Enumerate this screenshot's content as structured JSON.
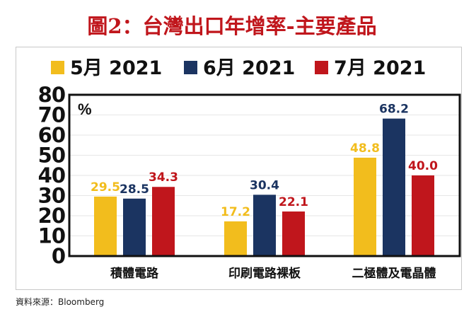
{
  "title": "圖2：台灣出口年增率-主要產品",
  "source": "資料來源：Bloomberg",
  "chart_data": {
    "type": "bar",
    "title": "圖2：台灣出口年增率-主要產品",
    "ylabel": "%",
    "xlabel": "",
    "ylim": [
      0,
      80
    ],
    "yticks": [
      "0",
      "10",
      "20",
      "30",
      "40",
      "50",
      "60",
      "70",
      "80"
    ],
    "grid": true,
    "legend_position": "top",
    "categories": [
      "積體電路",
      "印刷電路裸板",
      "二極體及電晶體"
    ],
    "series": [
      {
        "name": "5月 2021",
        "color": "#f2bd1d",
        "values": [
          29.5,
          17.2,
          48.8
        ],
        "labels": [
          "29.5",
          "17.2",
          "48.8"
        ]
      },
      {
        "name": "6月 2021",
        "color": "#1b3461",
        "values": [
          28.5,
          30.4,
          68.2
        ],
        "labels": [
          "28.5",
          "30.4",
          "68.2"
        ]
      },
      {
        "name": "7月 2021",
        "color": "#c0161c",
        "values": [
          34.3,
          22.1,
          40.0
        ],
        "labels": [
          "34.3",
          "22.1",
          "40.0"
        ]
      }
    ]
  }
}
